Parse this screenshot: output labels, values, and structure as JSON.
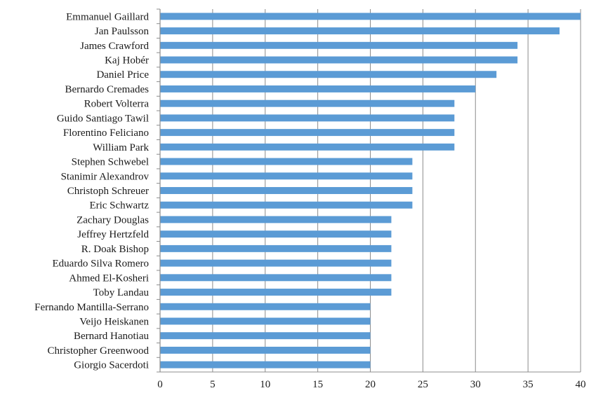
{
  "chart_data": {
    "type": "bar",
    "orientation": "horizontal",
    "categories": [
      "Emmanuel Gaillard",
      "Jan Paulsson",
      "James Crawford",
      "Kaj Hobér",
      "Daniel Price",
      "Bernardo Cremades",
      "Robert Volterra",
      "Guido Santiago Tawil",
      "Florentino Feliciano",
      "William Park",
      "Stephen Schwebel",
      "Stanimir Alexandrov",
      "Christoph Schreuer",
      "Eric Schwartz",
      "Zachary Douglas",
      "Jeffrey Hertzfeld",
      "R. Doak Bishop",
      "Eduardo Silva Romero",
      "Ahmed El-Kosheri",
      "Toby Landau",
      "Fernando Mantilla-Serrano",
      "Veijo Heiskanen",
      "Bernard Hanotiau",
      "Christopher Greenwood",
      "Giorgio Sacerdoti"
    ],
    "values": [
      40,
      38,
      34,
      34,
      32,
      30,
      28,
      28,
      28,
      28,
      24,
      24,
      24,
      24,
      22,
      22,
      22,
      22,
      22,
      22,
      20,
      20,
      20,
      20,
      20
    ],
    "xlim": [
      0,
      40
    ],
    "xticks": [
      0,
      5,
      10,
      15,
      20,
      25,
      30,
      35,
      40
    ],
    "grid": "vertical",
    "legend": "none",
    "title": "",
    "xlabel": "",
    "ylabel": "",
    "colors": {
      "bar": "#5b9bd5",
      "grid": "#8c8c8c",
      "axis": "#8c8c8c"
    }
  }
}
